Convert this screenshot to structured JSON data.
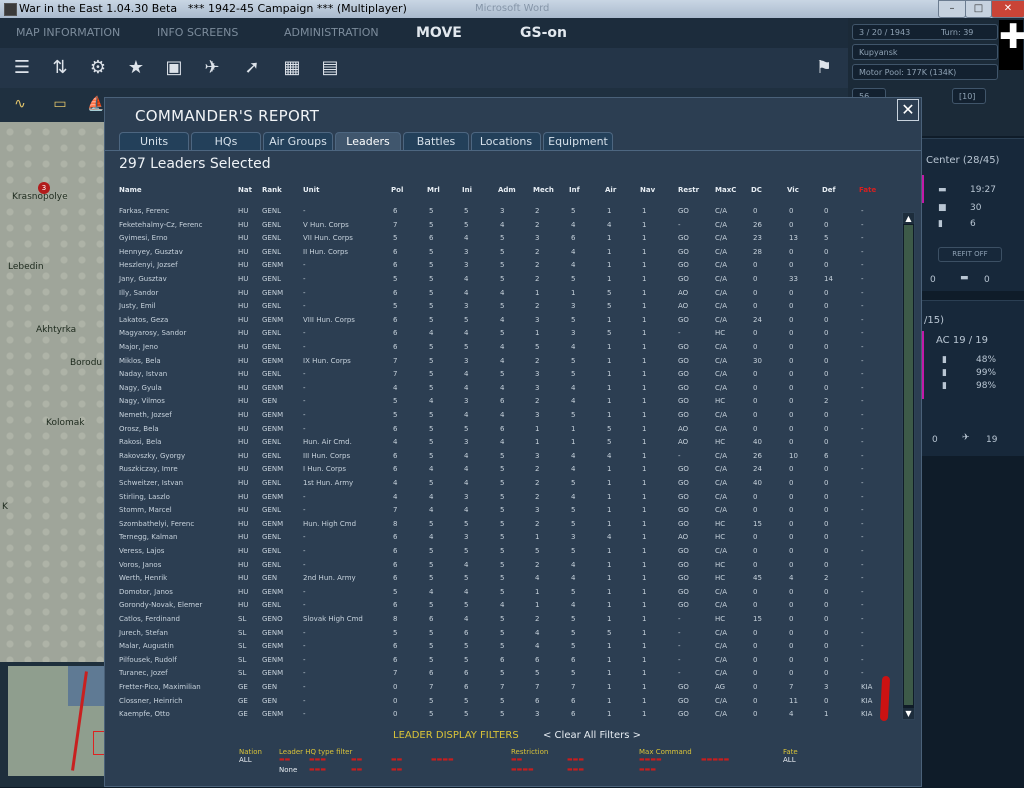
{
  "window": {
    "title": "War in the East 1.04.30 Beta",
    "subtitle": "***   1942-45 Campaign   ***  (Multiplayer)",
    "faint": "Microsoft Word",
    "min": "–",
    "max": "□",
    "close": "✕"
  },
  "menu": {
    "map_info": "MAP INFORMATION",
    "info_screens": "INFO SCREENS",
    "administration": "ADMINISTRATION",
    "move": "MOVE",
    "gs": "GS-on"
  },
  "status": {
    "date": "3 / 20 / 1943",
    "turn": "Turn: 39",
    "location": "Kupyansk",
    "motor_pool": "Motor Pool:  177K (134K)",
    "f1": "56",
    "f2": "[10]"
  },
  "map": {
    "cities": [
      "Krasnopolye",
      "Lebedin",
      "Akhtyrka",
      "Borodu",
      "Kolomak",
      "K"
    ],
    "unit": "3"
  },
  "right_panel": {
    "hq_label": "Center  (28/45)",
    "tanks": "19:27",
    "inf": "30",
    "art": "6",
    "refit": "REFIT OFF",
    "zero1": "0",
    "zero2": "0",
    "air_label": "/15)",
    "ac": "AC  19 / 19",
    "pct1": "48%",
    "pct2": "99%",
    "pct3": "98%",
    "zero3": "0",
    "planes": "19"
  },
  "dialog": {
    "title": "COMMANDER'S REPORT",
    "close": "✕",
    "tabs": [
      "Units",
      "HQs",
      "Air Groups",
      "Leaders",
      "Battles",
      "Locations",
      "Equipment"
    ],
    "active_tab": 3,
    "selected": "297 Leaders Selected",
    "scroll_up": "▲",
    "scroll_down": "▼"
  },
  "table": {
    "columns": [
      "Name",
      "Nat",
      "Rank",
      "Unit",
      "Pol",
      "Mrl",
      "Ini",
      "Adm",
      "Mech",
      "Inf",
      "Air",
      "Nav",
      "Restr",
      "MaxC",
      "DC",
      "Vic",
      "Def",
      "Fate"
    ],
    "rows": [
      [
        "Farkas, Ferenc",
        "HU",
        "GENL",
        "-",
        "6",
        "5",
        "5",
        "3",
        "2",
        "5",
        "1",
        "1",
        "GO",
        "C/A",
        "0",
        "0",
        "0",
        "-"
      ],
      [
        "Feketehalmy-Cz, Ferenc",
        "HU",
        "GENL",
        "V Hun. Corps",
        "7",
        "5",
        "5",
        "4",
        "2",
        "4",
        "4",
        "1",
        "-",
        "C/A",
        "26",
        "0",
        "0",
        "-"
      ],
      [
        "Gyimesi, Erno",
        "HU",
        "GENL",
        "VII Hun. Corps",
        "5",
        "6",
        "4",
        "5",
        "3",
        "6",
        "1",
        "1",
        "GO",
        "C/A",
        "23",
        "13",
        "5",
        "-"
      ],
      [
        "Hennyey, Gusztav",
        "HU",
        "GENL",
        "II Hun. Corps",
        "6",
        "5",
        "3",
        "5",
        "2",
        "4",
        "1",
        "1",
        "GO",
        "C/A",
        "28",
        "0",
        "0",
        "-"
      ],
      [
        "Heszlenyi, Jozsef",
        "HU",
        "GENM",
        "-",
        "6",
        "5",
        "3",
        "5",
        "2",
        "4",
        "1",
        "1",
        "GO",
        "C/A",
        "0",
        "0",
        "0",
        "-"
      ],
      [
        "Jany, Gusztav",
        "HU",
        "GENL",
        "-",
        "5",
        "5",
        "4",
        "5",
        "2",
        "5",
        "1",
        "1",
        "GO",
        "C/A",
        "0",
        "33",
        "14",
        "-"
      ],
      [
        "Illy, Sandor",
        "HU",
        "GENM",
        "-",
        "6",
        "5",
        "4",
        "4",
        "1",
        "1",
        "5",
        "1",
        "AO",
        "C/A",
        "0",
        "0",
        "0",
        "-"
      ],
      [
        "Justy, Emil",
        "HU",
        "GENL",
        "-",
        "5",
        "5",
        "3",
        "5",
        "2",
        "3",
        "5",
        "1",
        "AO",
        "C/A",
        "0",
        "0",
        "0",
        "-"
      ],
      [
        "Lakatos, Geza",
        "HU",
        "GENM",
        "VIII Hun. Corps",
        "6",
        "5",
        "5",
        "4",
        "3",
        "5",
        "1",
        "1",
        "GO",
        "C/A",
        "24",
        "0",
        "0",
        "-"
      ],
      [
        "Magyarosy, Sandor",
        "HU",
        "GENL",
        "-",
        "6",
        "4",
        "4",
        "5",
        "1",
        "3",
        "5",
        "1",
        "-",
        "HC",
        "0",
        "0",
        "0",
        "-"
      ],
      [
        "Major, Jeno",
        "HU",
        "GENL",
        "-",
        "6",
        "5",
        "5",
        "4",
        "5",
        "4",
        "1",
        "1",
        "GO",
        "C/A",
        "0",
        "0",
        "0",
        "-"
      ],
      [
        "Miklos, Bela",
        "HU",
        "GENM",
        "IX Hun. Corps",
        "7",
        "5",
        "3",
        "4",
        "2",
        "5",
        "1",
        "1",
        "GO",
        "C/A",
        "30",
        "0",
        "0",
        "-"
      ],
      [
        "Naday, Istvan",
        "HU",
        "GENL",
        "-",
        "7",
        "5",
        "4",
        "5",
        "3",
        "5",
        "1",
        "1",
        "GO",
        "C/A",
        "0",
        "0",
        "0",
        "-"
      ],
      [
        "Nagy, Gyula",
        "HU",
        "GENM",
        "-",
        "4",
        "5",
        "4",
        "4",
        "3",
        "4",
        "1",
        "1",
        "GO",
        "C/A",
        "0",
        "0",
        "0",
        "-"
      ],
      [
        "Nagy, Vilmos",
        "HU",
        "GEN",
        "-",
        "5",
        "4",
        "3",
        "6",
        "2",
        "4",
        "1",
        "1",
        "GO",
        "HC",
        "0",
        "0",
        "2",
        "-"
      ],
      [
        "Nemeth, Jozsef",
        "HU",
        "GENM",
        "-",
        "5",
        "5",
        "4",
        "4",
        "3",
        "5",
        "1",
        "1",
        "GO",
        "C/A",
        "0",
        "0",
        "0",
        "-"
      ],
      [
        "Orosz, Bela",
        "HU",
        "GENM",
        "-",
        "6",
        "5",
        "5",
        "6",
        "1",
        "1",
        "5",
        "1",
        "AO",
        "C/A",
        "0",
        "0",
        "0",
        "-"
      ],
      [
        "Rakosi, Bela",
        "HU",
        "GENL",
        "Hun. Air Cmd.",
        "4",
        "5",
        "3",
        "4",
        "1",
        "1",
        "5",
        "1",
        "AO",
        "HC",
        "40",
        "0",
        "0",
        "-"
      ],
      [
        "Rakovszky, Gyorgy",
        "HU",
        "GENL",
        "III Hun. Corps",
        "6",
        "5",
        "4",
        "5",
        "3",
        "4",
        "4",
        "1",
        "-",
        "C/A",
        "26",
        "10",
        "6",
        "-"
      ],
      [
        "Ruszkiczay, Imre",
        "HU",
        "GENM",
        "I Hun. Corps",
        "6",
        "4",
        "4",
        "5",
        "2",
        "4",
        "1",
        "1",
        "GO",
        "C/A",
        "24",
        "0",
        "0",
        "-"
      ],
      [
        "Schweitzer, Istvan",
        "HU",
        "GENL",
        "1st Hun. Army",
        "4",
        "5",
        "4",
        "5",
        "2",
        "5",
        "1",
        "1",
        "GO",
        "C/A",
        "40",
        "0",
        "0",
        "-"
      ],
      [
        "Stirling, Laszlo",
        "HU",
        "GENM",
        "-",
        "4",
        "4",
        "3",
        "5",
        "2",
        "4",
        "1",
        "1",
        "GO",
        "C/A",
        "0",
        "0",
        "0",
        "-"
      ],
      [
        "Stomm, Marcel",
        "HU",
        "GENL",
        "-",
        "7",
        "4",
        "4",
        "5",
        "3",
        "5",
        "1",
        "1",
        "GO",
        "C/A",
        "0",
        "0",
        "0",
        "-"
      ],
      [
        "Szombathelyi, Ferenc",
        "HU",
        "GENM",
        "Hun. High Cmd",
        "8",
        "5",
        "5",
        "5",
        "2",
        "5",
        "1",
        "1",
        "GO",
        "HC",
        "15",
        "0",
        "0",
        "-"
      ],
      [
        "Ternegg, Kalman",
        "HU",
        "GENL",
        "-",
        "6",
        "4",
        "3",
        "5",
        "1",
        "3",
        "4",
        "1",
        "AO",
        "HC",
        "0",
        "0",
        "0",
        "-"
      ],
      [
        "Veress, Lajos",
        "HU",
        "GENL",
        "-",
        "6",
        "5",
        "5",
        "5",
        "5",
        "5",
        "1",
        "1",
        "GO",
        "C/A",
        "0",
        "0",
        "0",
        "-"
      ],
      [
        "Voros, Janos",
        "HU",
        "GENL",
        "-",
        "6",
        "5",
        "4",
        "5",
        "2",
        "4",
        "1",
        "1",
        "GO",
        "HC",
        "0",
        "0",
        "0",
        "-"
      ],
      [
        "Werth, Henrik",
        "HU",
        "GEN",
        "2nd Hun. Army",
        "6",
        "5",
        "5",
        "5",
        "4",
        "4",
        "1",
        "1",
        "GO",
        "HC",
        "45",
        "4",
        "2",
        "-"
      ],
      [
        "Domotor, Janos",
        "HU",
        "GENM",
        "-",
        "5",
        "4",
        "4",
        "5",
        "1",
        "5",
        "1",
        "1",
        "GO",
        "C/A",
        "0",
        "0",
        "0",
        "-"
      ],
      [
        "Gorondy-Novak, Elemer",
        "HU",
        "GENL",
        "-",
        "6",
        "5",
        "5",
        "4",
        "1",
        "4",
        "1",
        "1",
        "GO",
        "C/A",
        "0",
        "0",
        "0",
        "-"
      ],
      [
        "Catlos, Ferdinand",
        "SL",
        "GENO",
        "Slovak High Cmd",
        "8",
        "6",
        "4",
        "5",
        "2",
        "5",
        "1",
        "1",
        "-",
        "HC",
        "15",
        "0",
        "0",
        "-"
      ],
      [
        "Jurech, Stefan",
        "SL",
        "GENM",
        "-",
        "5",
        "5",
        "6",
        "5",
        "4",
        "5",
        "5",
        "1",
        "-",
        "C/A",
        "0",
        "0",
        "0",
        "-"
      ],
      [
        "Malar, Augustin",
        "SL",
        "GENM",
        "-",
        "6",
        "5",
        "5",
        "5",
        "4",
        "5",
        "1",
        "1",
        "-",
        "C/A",
        "0",
        "0",
        "0",
        "-"
      ],
      [
        "Pilfousek, Rudolf",
        "SL",
        "GENM",
        "-",
        "6",
        "5",
        "5",
        "6",
        "6",
        "6",
        "1",
        "1",
        "-",
        "C/A",
        "0",
        "0",
        "0",
        "-"
      ],
      [
        "Turanec, Jozef",
        "SL",
        "GENM",
        "-",
        "7",
        "6",
        "6",
        "5",
        "5",
        "5",
        "1",
        "1",
        "-",
        "C/A",
        "0",
        "0",
        "0",
        "-"
      ],
      [
        "Fretter-Pico, Maximilian",
        "GE",
        "GEN",
        "-",
        "0",
        "7",
        "6",
        "7",
        "7",
        "7",
        "1",
        "1",
        "GO",
        "AG",
        "0",
        "7",
        "3",
        "KIA"
      ],
      [
        "Clossner, Heinrich",
        "GE",
        "GEN",
        "-",
        "0",
        "5",
        "5",
        "5",
        "6",
        "6",
        "1",
        "1",
        "GO",
        "C/A",
        "0",
        "11",
        "0",
        "KIA"
      ],
      [
        "Kaempfe, Otto",
        "GE",
        "GENM",
        "-",
        "0",
        "5",
        "5",
        "5",
        "3",
        "6",
        "1",
        "1",
        "GO",
        "C/A",
        "0",
        "4",
        "1",
        "KIA"
      ]
    ]
  },
  "filters": {
    "title": "LEADER DISPLAY FILTERS",
    "clear": "< Clear All Filters >",
    "nation_label": "Nation",
    "nation_value": "ALL",
    "hq_label": "Leader HQ type filter",
    "hq_none": "None",
    "restriction_label": "Restriction",
    "max_label": "Max Command",
    "fate_label": "Fate",
    "fate_value": "ALL"
  }
}
